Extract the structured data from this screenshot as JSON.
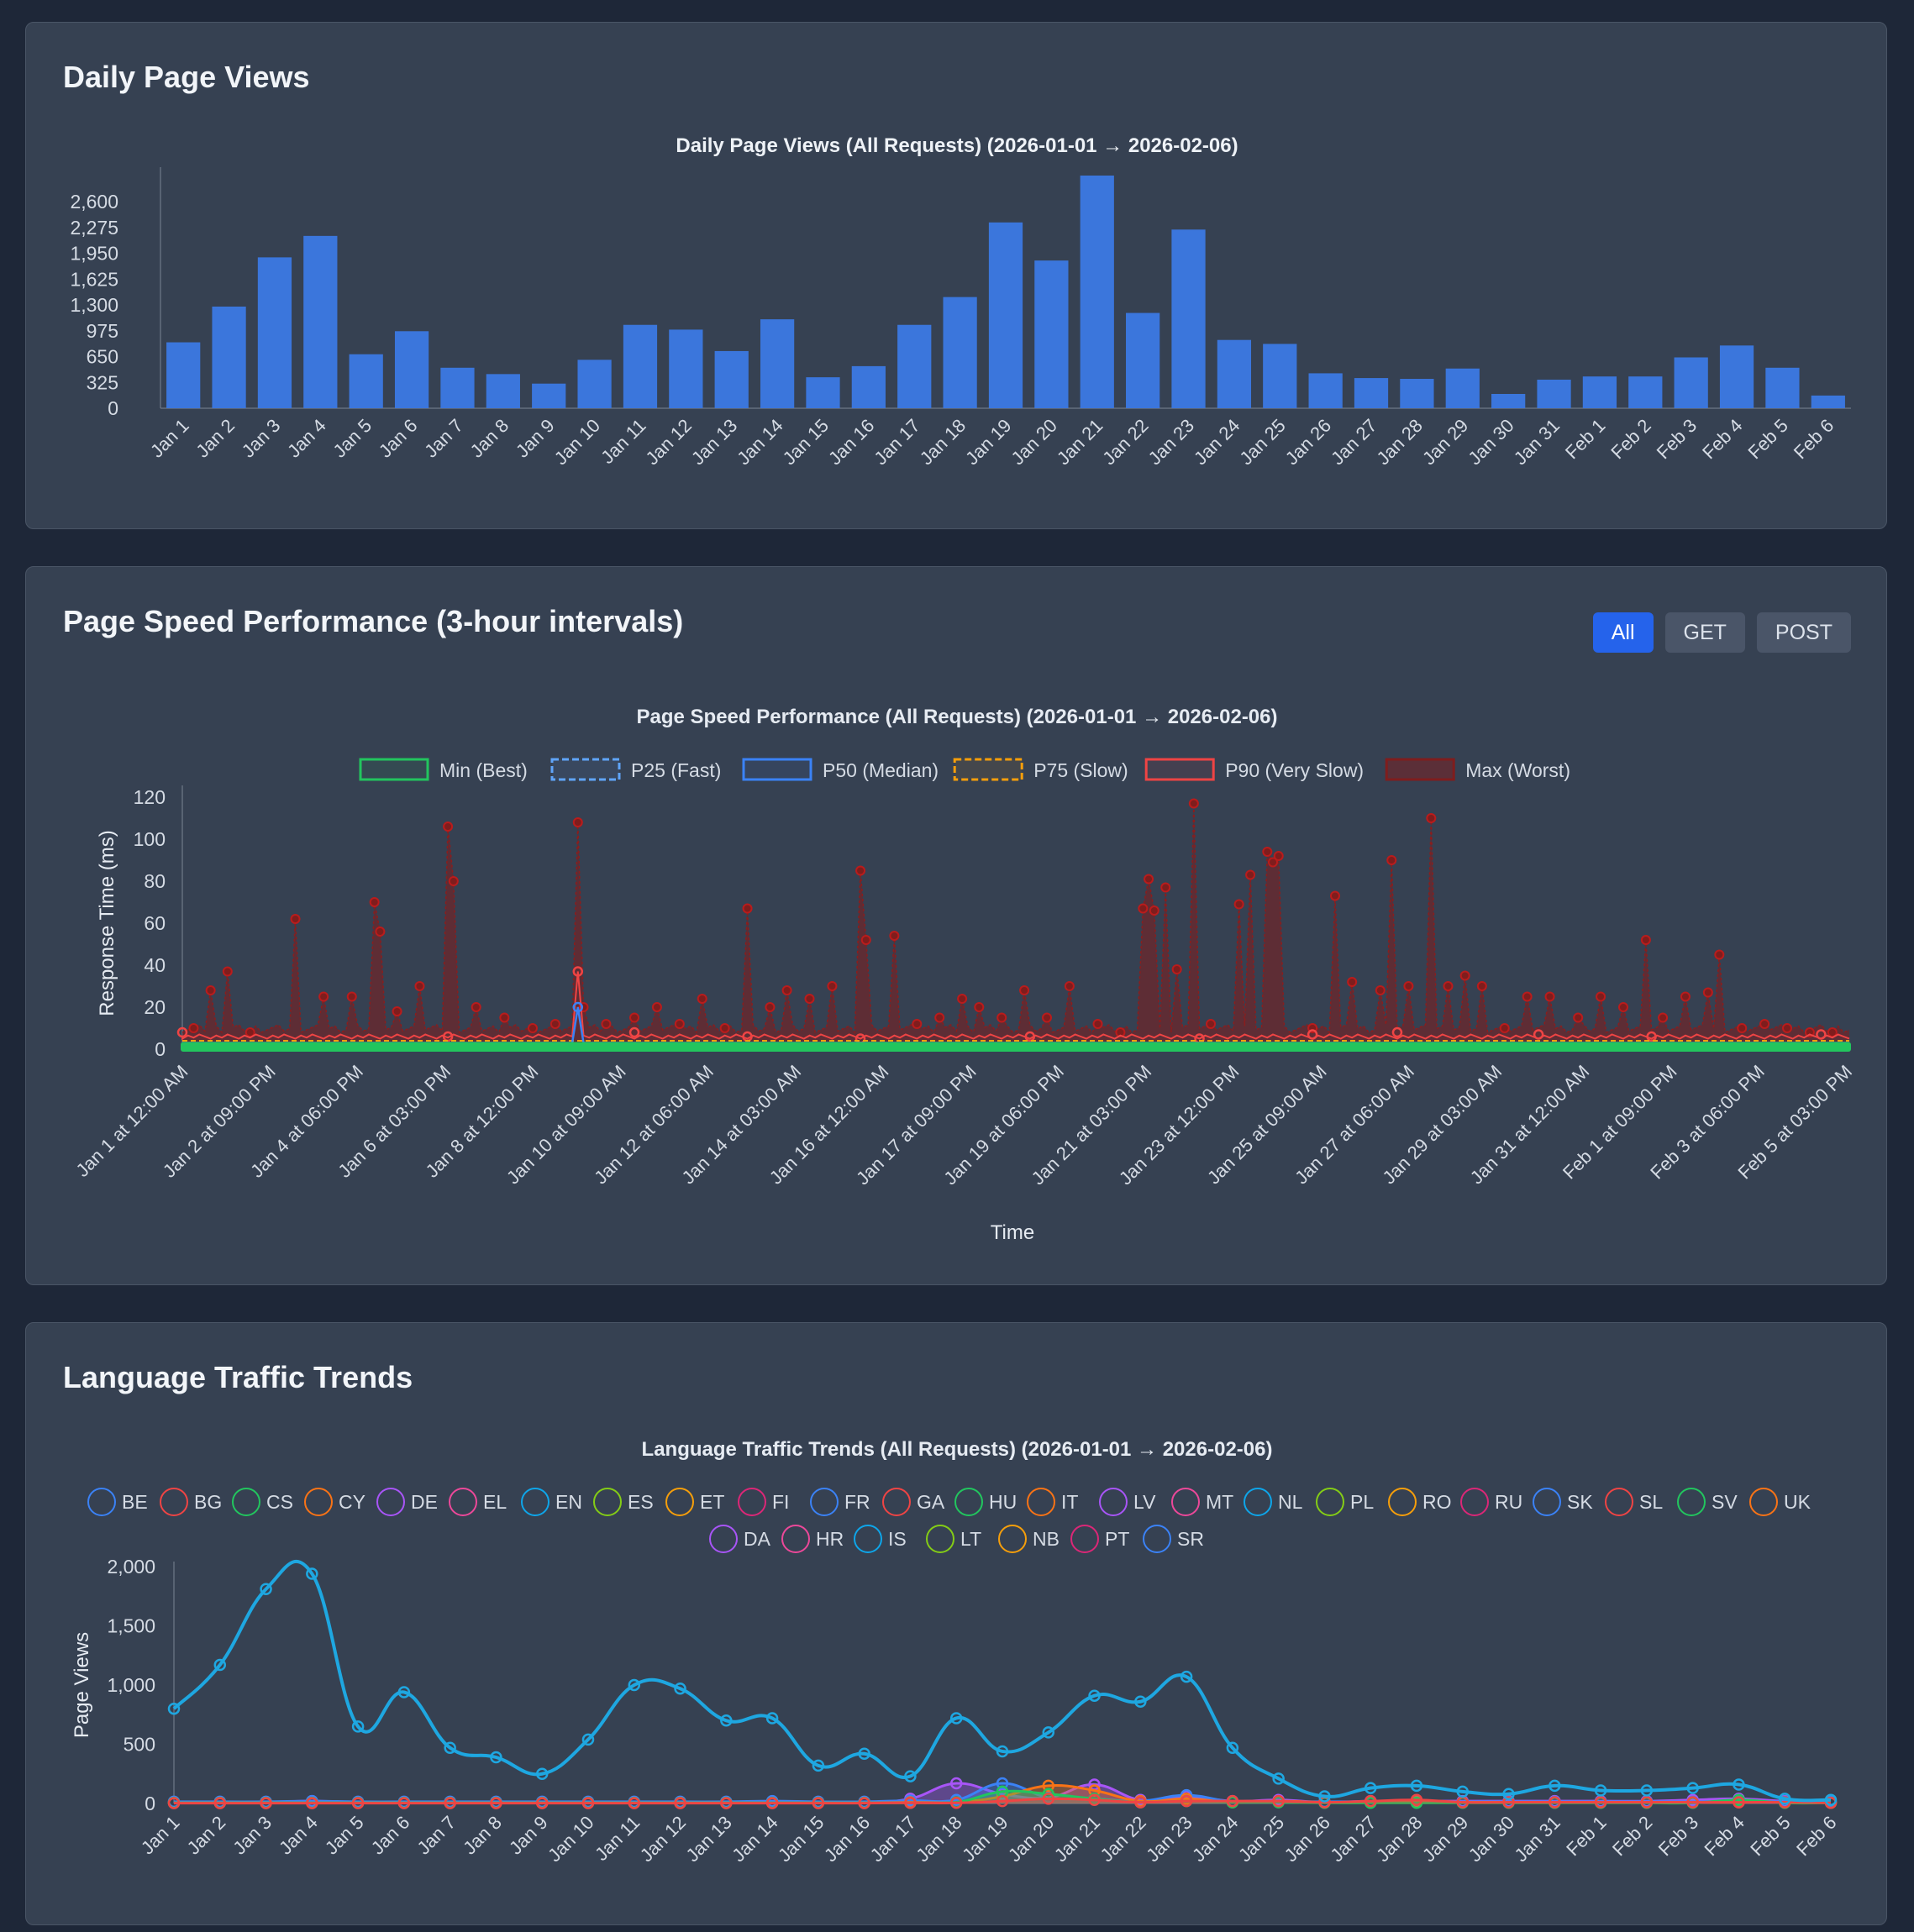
{
  "colors": {
    "bar": "#3b76dc",
    "text": "#d5dbe4",
    "axis": "#7b8594"
  },
  "cards": {
    "daily": {
      "title": "Daily Page Views"
    },
    "speed": {
      "title": "Page Speed Performance (3-hour intervals)",
      "buttons": [
        "All",
        "GET",
        "POST"
      ],
      "active": "All"
    },
    "lang": {
      "title": "Language Traffic Trends"
    }
  },
  "chart_data": [
    {
      "type": "bar",
      "title": "Daily Page Views (All Requests) (2026-01-01 → 2026-02-06)",
      "categories": [
        "Jan 1",
        "Jan 2",
        "Jan 3",
        "Jan 4",
        "Jan 5",
        "Jan 6",
        "Jan 7",
        "Jan 8",
        "Jan 9",
        "Jan 10",
        "Jan 11",
        "Jan 12",
        "Jan 13",
        "Jan 14",
        "Jan 15",
        "Jan 16",
        "Jan 17",
        "Jan 18",
        "Jan 19",
        "Jan 20",
        "Jan 21",
        "Jan 22",
        "Jan 23",
        "Jan 24",
        "Jan 25",
        "Jan 26",
        "Jan 27",
        "Jan 28",
        "Jan 29",
        "Jan 30",
        "Jan 31",
        "Feb 1",
        "Feb 2",
        "Feb 3",
        "Feb 4",
        "Feb 5",
        "Feb 6"
      ],
      "values": [
        830,
        1280,
        1900,
        2170,
        680,
        970,
        510,
        430,
        310,
        610,
        1050,
        990,
        720,
        1120,
        390,
        530,
        1050,
        1400,
        2340,
        1860,
        2930,
        1200,
        2250,
        860,
        810,
        440,
        380,
        370,
        500,
        180,
        360,
        400,
        400,
        640,
        790,
        510,
        160
      ],
      "yticks": [
        0,
        325,
        650,
        975,
        1300,
        1625,
        1950,
        2275,
        2600
      ],
      "ylim": [
        0,
        2930
      ]
    },
    {
      "type": "line",
      "title": "Page Speed Performance (All Requests) (2026-01-01 → 2026-02-06)",
      "xlabel": "Time",
      "ylabel": "Response Time (ms)",
      "ylim": [
        0,
        120
      ],
      "yticks": [
        0,
        20,
        40,
        60,
        80,
        100,
        120
      ],
      "x_ticks": [
        "Jan 1 at 12:00 AM",
        "Jan 2 at 09:00 PM",
        "Jan 4 at 06:00 PM",
        "Jan 6 at 03:00 PM",
        "Jan 8 at 12:00 PM",
        "Jan 10 at 09:00 AM",
        "Jan 12 at 06:00 AM",
        "Jan 14 at 03:00 AM",
        "Jan 16 at 12:00 AM",
        "Jan 17 at 09:00 PM",
        "Jan 19 at 06:00 PM",
        "Jan 21 at 03:00 PM",
        "Jan 23 at 12:00 PM",
        "Jan 25 at 09:00 AM",
        "Jan 27 at 06:00 AM",
        "Jan 29 at 03:00 AM",
        "Jan 31 at 12:00 AM",
        "Feb 1 at 09:00 PM",
        "Feb 3 at 06:00 PM",
        "Feb 5 at 03:00 PM"
      ],
      "x_range": [
        0,
        295
      ],
      "legend": [
        {
          "name": "Min (Best)",
          "color": "#22c55e",
          "dash": false,
          "fill": "rgba(34,197,94,0.08)"
        },
        {
          "name": "P25 (Fast)",
          "color": "#60a5fa",
          "dash": true,
          "fill": "rgba(96,165,250,0.08)"
        },
        {
          "name": "P50 (Median)",
          "color": "#3b82f6",
          "dash": false,
          "fill": "rgba(59,130,246,0.08)"
        },
        {
          "name": "P75 (Slow)",
          "color": "#f59e0b",
          "dash": true,
          "fill": "rgba(245,158,11,0.08)"
        },
        {
          "name": "P90 (Very Slow)",
          "color": "#ef4444",
          "dash": false,
          "fill": "rgba(239,68,68,0.08)"
        },
        {
          "name": "Max (Worst)",
          "color": "#7f1d1d",
          "dash": false,
          "fill": "rgba(127,29,29,0.5)"
        }
      ],
      "max_spikes": [
        [
          2,
          10
        ],
        [
          5,
          28
        ],
        [
          8,
          37
        ],
        [
          12,
          8
        ],
        [
          20,
          62
        ],
        [
          25,
          25
        ],
        [
          30,
          25
        ],
        [
          34,
          70
        ],
        [
          35,
          56
        ],
        [
          38,
          18
        ],
        [
          42,
          30
        ],
        [
          47,
          106
        ],
        [
          48,
          80
        ],
        [
          52,
          20
        ],
        [
          57,
          15
        ],
        [
          62,
          10
        ],
        [
          66,
          12
        ],
        [
          70,
          108
        ],
        [
          71,
          20
        ],
        [
          75,
          12
        ],
        [
          80,
          15
        ],
        [
          84,
          20
        ],
        [
          88,
          12
        ],
        [
          92,
          24
        ],
        [
          96,
          10
        ],
        [
          100,
          67
        ],
        [
          104,
          20
        ],
        [
          107,
          28
        ],
        [
          111,
          24
        ],
        [
          115,
          30
        ],
        [
          120,
          85
        ],
        [
          121,
          52
        ],
        [
          126,
          54
        ],
        [
          130,
          12
        ],
        [
          134,
          15
        ],
        [
          138,
          24
        ],
        [
          141,
          20
        ],
        [
          145,
          15
        ],
        [
          149,
          28
        ],
        [
          153,
          15
        ],
        [
          157,
          30
        ],
        [
          162,
          12
        ],
        [
          166,
          8
        ],
        [
          170,
          67
        ],
        [
          171,
          81
        ],
        [
          172,
          66
        ],
        [
          174,
          77
        ],
        [
          176,
          38
        ],
        [
          179,
          117
        ],
        [
          182,
          12
        ],
        [
          187,
          69
        ],
        [
          189,
          83
        ],
        [
          192,
          94
        ],
        [
          193,
          89
        ],
        [
          194,
          92
        ],
        [
          200,
          10
        ],
        [
          204,
          73
        ],
        [
          207,
          32
        ],
        [
          212,
          28
        ],
        [
          214,
          90
        ],
        [
          217,
          30
        ],
        [
          221,
          110
        ],
        [
          224,
          30
        ],
        [
          227,
          35
        ],
        [
          230,
          30
        ],
        [
          234,
          10
        ],
        [
          238,
          25
        ],
        [
          242,
          25
        ],
        [
          247,
          15
        ],
        [
          251,
          25
        ],
        [
          255,
          20
        ],
        [
          259,
          52
        ],
        [
          262,
          15
        ],
        [
          266,
          25
        ],
        [
          270,
          27
        ],
        [
          272,
          45
        ],
        [
          276,
          10
        ],
        [
          280,
          12
        ],
        [
          284,
          10
        ],
        [
          288,
          8
        ],
        [
          292,
          8
        ]
      ],
      "max_base": 8,
      "p90_points": [
        [
          0,
          8
        ],
        [
          47,
          6
        ],
        [
          70,
          37
        ],
        [
          80,
          8
        ],
        [
          100,
          6
        ],
        [
          120,
          5
        ],
        [
          150,
          6
        ],
        [
          180,
          5
        ],
        [
          200,
          7
        ],
        [
          215,
          8
        ],
        [
          240,
          7
        ],
        [
          260,
          6
        ],
        [
          290,
          7
        ]
      ],
      "p50_spike": [
        [
          70,
          20
        ]
      ],
      "min_value": 1
    },
    {
      "type": "line",
      "title": "Language Traffic Trends (All Requests) (2026-01-01 → 2026-02-06)",
      "ylabel": "Page Views",
      "ylim": [
        0,
        2000
      ],
      "yticks": [
        0,
        500,
        1000,
        1500,
        2000
      ],
      "categories": [
        "Jan 1",
        "Jan 2",
        "Jan 3",
        "Jan 4",
        "Jan 5",
        "Jan 6",
        "Jan 7",
        "Jan 8",
        "Jan 9",
        "Jan 10",
        "Jan 11",
        "Jan 12",
        "Jan 13",
        "Jan 14",
        "Jan 15",
        "Jan 16",
        "Jan 17",
        "Jan 18",
        "Jan 19",
        "Jan 20",
        "Jan 21",
        "Jan 22",
        "Jan 23",
        "Jan 24",
        "Jan 25",
        "Jan 26",
        "Jan 27",
        "Jan 28",
        "Jan 29",
        "Jan 30",
        "Jan 31",
        "Feb 1",
        "Feb 2",
        "Feb 3",
        "Feb 4",
        "Feb 5",
        "Feb 6"
      ],
      "legend": [
        {
          "name": "BE",
          "color": "#3b82f6"
        },
        {
          "name": "BG",
          "color": "#ef4444"
        },
        {
          "name": "CS",
          "color": "#22c55e"
        },
        {
          "name": "CY",
          "color": "#f97316"
        },
        {
          "name": "DE",
          "color": "#a855f7"
        },
        {
          "name": "EL",
          "color": "#ec4899"
        },
        {
          "name": "EN",
          "color": "#0ea5e9"
        },
        {
          "name": "ES",
          "color": "#84cc16"
        },
        {
          "name": "ET",
          "color": "#f59e0b"
        },
        {
          "name": "FI",
          "color": "#db2777"
        },
        {
          "name": "FR",
          "color": "#3b82f6"
        },
        {
          "name": "GA",
          "color": "#ef4444"
        },
        {
          "name": "HU",
          "color": "#22c55e"
        },
        {
          "name": "IT",
          "color": "#f97316"
        },
        {
          "name": "LV",
          "color": "#a855f7"
        },
        {
          "name": "MT",
          "color": "#ec4899"
        },
        {
          "name": "NL",
          "color": "#0ea5e9"
        },
        {
          "name": "PL",
          "color": "#84cc16"
        },
        {
          "name": "RO",
          "color": "#f59e0b"
        },
        {
          "name": "RU",
          "color": "#db2777"
        },
        {
          "name": "SK",
          "color": "#3b82f6"
        },
        {
          "name": "SL",
          "color": "#ef4444"
        },
        {
          "name": "SV",
          "color": "#22c55e"
        },
        {
          "name": "UK",
          "color": "#f97316"
        },
        {
          "name": "DA",
          "color": "#a855f7"
        },
        {
          "name": "HR",
          "color": "#ec4899"
        },
        {
          "name": "IS",
          "color": "#0ea5e9"
        },
        {
          "name": "LT",
          "color": "#84cc16"
        },
        {
          "name": "NB",
          "color": "#f59e0b"
        },
        {
          "name": "PT",
          "color": "#db2777"
        },
        {
          "name": "SR",
          "color": "#3b82f6"
        }
      ],
      "series": [
        {
          "name": "EN",
          "color": "#1ea7e1",
          "values": [
            800,
            1170,
            1810,
            1940,
            650,
            940,
            470,
            390,
            250,
            540,
            1000,
            970,
            700,
            720,
            320,
            420,
            230,
            720,
            440,
            600,
            910,
            860,
            1070,
            470,
            210,
            60,
            130,
            150,
            100,
            80,
            150,
            110,
            110,
            130,
            160,
            40,
            30
          ]
        },
        {
          "name": "DE",
          "color": "#a855f7",
          "values": [
            10,
            10,
            10,
            20,
            10,
            10,
            10,
            10,
            10,
            10,
            10,
            10,
            10,
            10,
            10,
            10,
            40,
            170,
            80,
            50,
            160,
            30,
            60,
            20,
            30,
            10,
            20,
            20,
            20,
            20,
            20,
            20,
            20,
            30,
            40,
            20,
            10
          ]
        },
        {
          "name": "FR",
          "color": "#3b82f6",
          "values": [
            15,
            15,
            15,
            20,
            15,
            15,
            15,
            15,
            15,
            15,
            15,
            15,
            15,
            20,
            15,
            15,
            25,
            30,
            170,
            50,
            40,
            20,
            70,
            15,
            15,
            15,
            15,
            15,
            15,
            15,
            15,
            15,
            15,
            15,
            15,
            15,
            15
          ]
        },
        {
          "name": "IT",
          "color": "#f97316",
          "values": [
            5,
            5,
            5,
            5,
            5,
            5,
            5,
            5,
            5,
            5,
            5,
            5,
            5,
            5,
            5,
            5,
            10,
            10,
            60,
            150,
            110,
            20,
            40,
            10,
            20,
            10,
            10,
            10,
            10,
            10,
            10,
            10,
            10,
            10,
            10,
            10,
            5
          ]
        },
        {
          "name": "HU",
          "color": "#22c55e",
          "values": [
            5,
            5,
            5,
            5,
            5,
            5,
            5,
            5,
            5,
            5,
            5,
            5,
            5,
            5,
            5,
            5,
            5,
            10,
            100,
            80,
            40,
            10,
            20,
            10,
            10,
            5,
            5,
            5,
            5,
            5,
            5,
            5,
            5,
            5,
            30,
            5,
            5
          ]
        },
        {
          "name": "BG",
          "color": "#ef4444",
          "values": [
            3,
            3,
            3,
            3,
            3,
            3,
            3,
            3,
            3,
            3,
            3,
            3,
            3,
            3,
            3,
            3,
            5,
            5,
            20,
            40,
            30,
            10,
            20,
            20,
            20,
            10,
            20,
            30,
            10,
            10,
            10,
            10,
            10,
            10,
            10,
            10,
            5
          ]
        }
      ]
    }
  ]
}
